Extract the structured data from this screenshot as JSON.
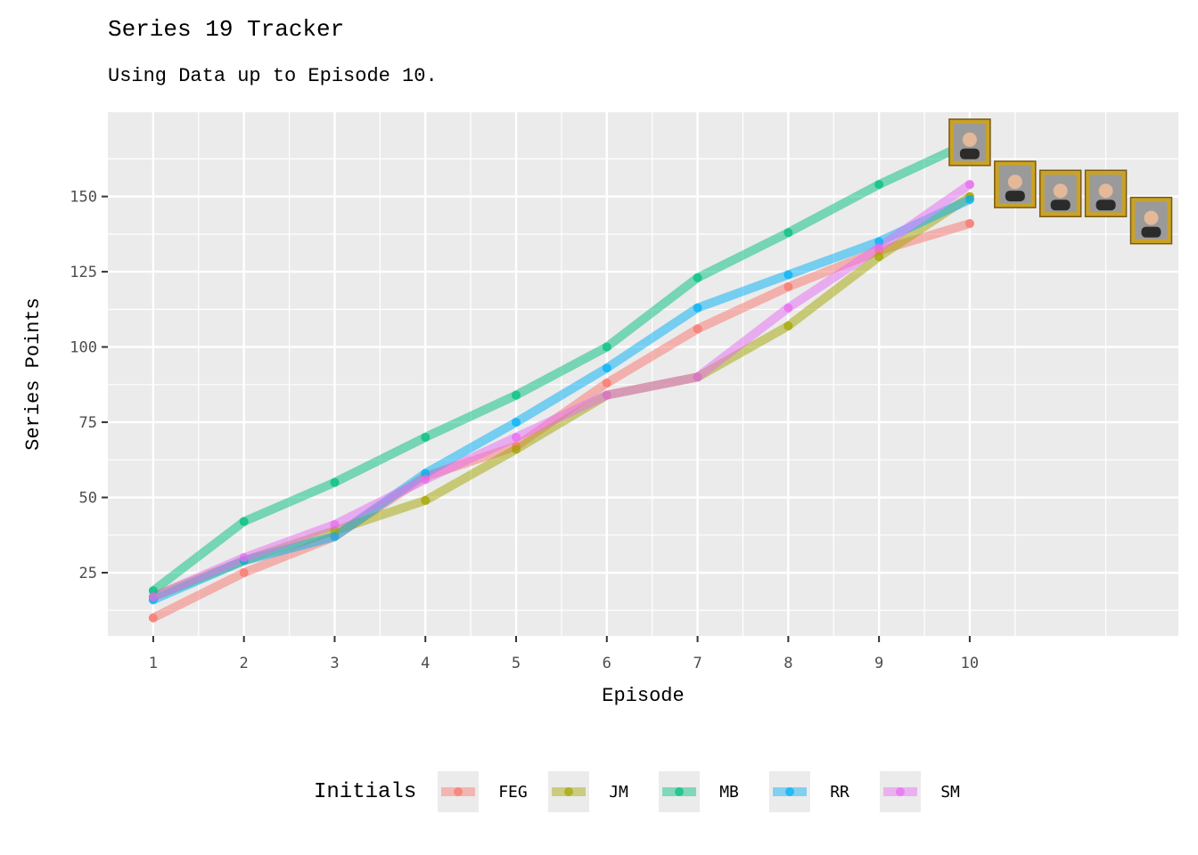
{
  "title": "Series 19 Tracker",
  "subtitle": "Using Data up to Episode 10.",
  "chart_data": {
    "type": "line",
    "xlabel": "Episode",
    "ylabel": "Series Points",
    "x": [
      1,
      2,
      3,
      4,
      5,
      6,
      7,
      8,
      9,
      10
    ],
    "xlim": [
      0.5,
      12.3
    ],
    "ylim": [
      4,
      178
    ],
    "yticks": [
      25,
      50,
      75,
      100,
      125,
      150
    ],
    "grid": true,
    "legend": {
      "title": "Initials",
      "position": "bottom"
    },
    "series": [
      {
        "name": "FEG",
        "color": "#F8766D",
        "values": [
          10,
          25,
          37,
          57,
          67,
          88,
          106,
          120,
          132,
          141
        ]
      },
      {
        "name": "JM",
        "color": "#A3A500",
        "values": [
          17,
          29,
          39,
          49,
          66,
          84,
          90,
          107,
          130,
          150
        ]
      },
      {
        "name": "MB",
        "color": "#00BF7D",
        "values": [
          19,
          42,
          55,
          70,
          84,
          100,
          123,
          138,
          154,
          168
        ]
      },
      {
        "name": "RR",
        "color": "#00B0F6",
        "values": [
          16,
          29,
          37,
          58,
          75,
          93,
          113,
          124,
          135,
          149
        ]
      },
      {
        "name": "SM",
        "color": "#E76BF3",
        "values": [
          17,
          30,
          41,
          56,
          70,
          84,
          90,
          113,
          133,
          154
        ]
      }
    ],
    "portraits": [
      {
        "name": "MB",
        "x": 10.0,
        "y": 168
      },
      {
        "name": "JM",
        "x": 10.5,
        "y": 154
      },
      {
        "name": "RR",
        "x": 11.0,
        "y": 151
      },
      {
        "name": "FEG",
        "x": 11.5,
        "y": 151
      },
      {
        "name": "SM",
        "x": 12.0,
        "y": 142
      }
    ]
  }
}
